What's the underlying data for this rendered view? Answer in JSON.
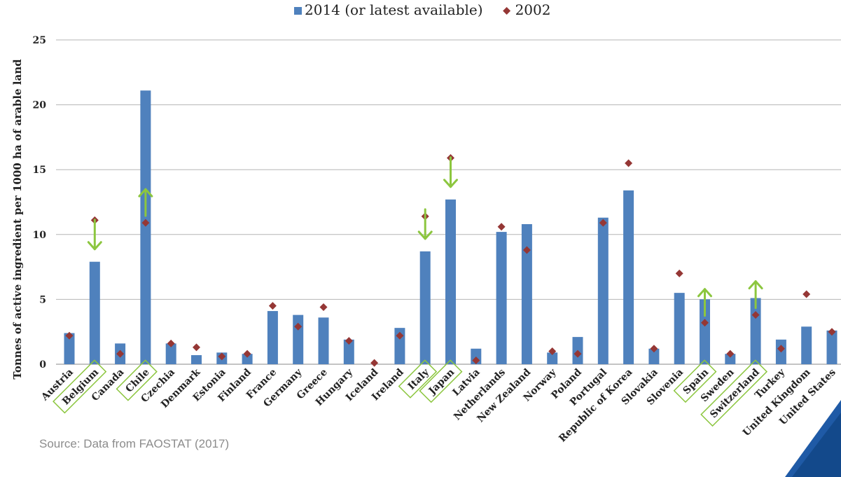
{
  "chart_data": {
    "type": "bar",
    "title": "",
    "xlabel": "",
    "ylabel": "Tonnes of active ingredient per 1000 ha of arable land",
    "ylim": [
      0,
      25
    ],
    "yticks": [
      0,
      5,
      10,
      15,
      20,
      25
    ],
    "grid": true,
    "legend_position": "top-center",
    "categories": [
      "Austria",
      "Belgium",
      "Canada",
      "Chile",
      "Czechia",
      "Denmark",
      "Estonia",
      "Finland",
      "France",
      "Germany",
      "Greece",
      "Hungary",
      "Iceland",
      "Ireland",
      "Italy",
      "Japan",
      "Latvia",
      "Netherlands",
      "New Zealand",
      "Norway",
      "Poland",
      "Portugal",
      "Republic of Korea",
      "Slovakia",
      "Slovenia",
      "Spain",
      "Sweden",
      "Switzerland",
      "Turkey",
      "United Kingdom",
      "United States"
    ],
    "highlighted_categories": [
      "Belgium",
      "Chile",
      "Italy",
      "Japan",
      "Spain",
      "Switzerland"
    ],
    "series": [
      {
        "name": "2014 (or latest available)",
        "kind": "bar",
        "color": "#4f81bd",
        "values": [
          2.4,
          7.9,
          1.6,
          21.1,
          1.6,
          0.7,
          0.9,
          0.8,
          4.1,
          3.8,
          3.6,
          1.9,
          0.0,
          2.8,
          8.7,
          12.7,
          1.2,
          10.2,
          10.8,
          0.9,
          2.1,
          11.3,
          13.4,
          1.2,
          5.5,
          5.0,
          0.8,
          5.1,
          1.9,
          2.9,
          2.6
        ]
      },
      {
        "name": "2002",
        "kind": "marker",
        "color": "#953735",
        "values": [
          2.2,
          11.1,
          0.8,
          10.9,
          1.6,
          1.3,
          0.6,
          0.8,
          4.5,
          2.9,
          4.4,
          1.8,
          0.1,
          2.2,
          11.4,
          15.9,
          0.3,
          10.6,
          8.8,
          1.0,
          0.8,
          10.9,
          15.5,
          1.2,
          7.0,
          3.2,
          0.8,
          3.8,
          1.2,
          5.4,
          2.5
        ]
      }
    ],
    "annotations": [
      {
        "category": "Belgium",
        "arrow": "down"
      },
      {
        "category": "Chile",
        "arrow": "up"
      },
      {
        "category": "Italy",
        "arrow": "down"
      },
      {
        "category": "Japan",
        "arrow": "down"
      },
      {
        "category": "Spain",
        "arrow": "up"
      },
      {
        "category": "Switzerland",
        "arrow": "up"
      }
    ],
    "annotation_color": "#8cc63f"
  },
  "source_text": "Source: Data from FAOSTAT (2017)"
}
